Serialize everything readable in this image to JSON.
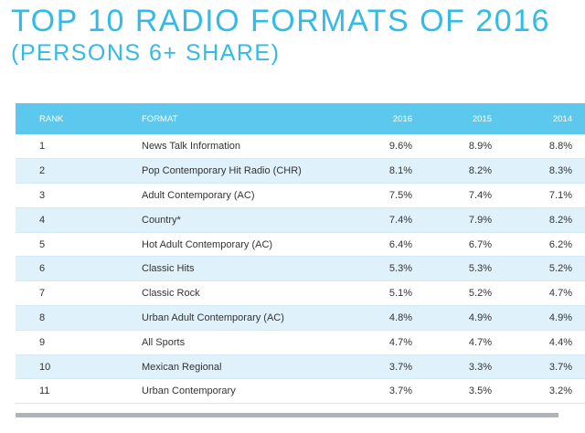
{
  "header": {
    "title": "TOP 10 RADIO FORMATS OF 2016",
    "subtitle": "(PERSONS 6+ SHARE)"
  },
  "table": {
    "columns": [
      "RANK",
      "FORMAT",
      "2016",
      "2015",
      "2014"
    ],
    "rows": [
      {
        "rank": "1",
        "format": "News Talk Information",
        "y2016": "9.6%",
        "y2015": "8.9%",
        "y2014": "8.8%"
      },
      {
        "rank": "2",
        "format": "Pop Contemporary Hit Radio (CHR)",
        "y2016": "8.1%",
        "y2015": "8.2%",
        "y2014": "8.3%"
      },
      {
        "rank": "3",
        "format": "Adult Contemporary (AC)",
        "y2016": "7.5%",
        "y2015": "7.4%",
        "y2014": "7.1%"
      },
      {
        "rank": "4",
        "format": "Country*",
        "y2016": "7.4%",
        "y2015": "7.9%",
        "y2014": "8.2%"
      },
      {
        "rank": "5",
        "format": "Hot Adult Contemporary (AC)",
        "y2016": "6.4%",
        "y2015": "6.7%",
        "y2014": "6.2%"
      },
      {
        "rank": "6",
        "format": "Classic Hits",
        "y2016": "5.3%",
        "y2015": "5.3%",
        "y2014": "5.2%"
      },
      {
        "rank": "7",
        "format": "Classic Rock",
        "y2016": "5.1%",
        "y2015": "5.2%",
        "y2014": "4.7%"
      },
      {
        "rank": "8",
        "format": "Urban Adult Contemporary (AC)",
        "y2016": "4.8%",
        "y2015": "4.9%",
        "y2014": "4.9%"
      },
      {
        "rank": "9",
        "format": "All Sports",
        "y2016": "4.7%",
        "y2015": "4.7%",
        "y2014": "4.4%"
      },
      {
        "rank": "10",
        "format": "Mexican Regional",
        "y2016": "3.7%",
        "y2015": "3.3%",
        "y2014": "3.7%"
      },
      {
        "rank": "11",
        "format": "Urban Contemporary",
        "y2016": "3.7%",
        "y2015": "3.5%",
        "y2014": "3.2%"
      }
    ]
  },
  "colors": {
    "title": "#33bbe8",
    "header_bg": "#5cc8ee",
    "stripe": "#dff1fa"
  }
}
